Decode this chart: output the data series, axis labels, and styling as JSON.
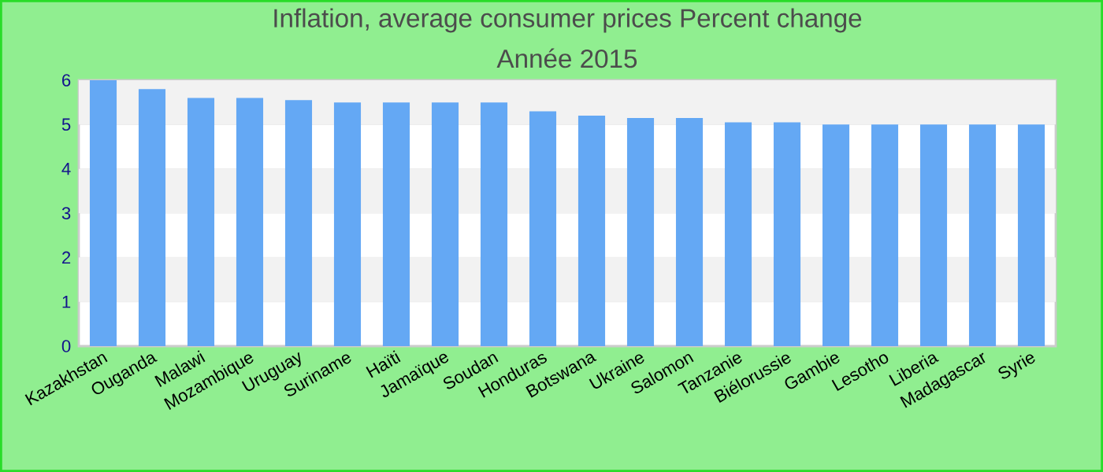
{
  "chart_data": {
    "type": "bar",
    "title": "Inflation, average consumer prices  Percent change",
    "subtitle": "Année 2015",
    "categories": [
      "Kazakhstan",
      "Ouganda",
      "Malawi",
      "Mozambique",
      "Uruguay",
      "Suriname",
      "Haïti",
      "Jamaïque",
      "Soudan",
      "Honduras",
      "Botswana",
      "Ukraine",
      "Salomon",
      "Tanzanie",
      "Biélorussie",
      "Gambie",
      "Lesotho",
      "Liberia",
      "Madagascar",
      "Syrie"
    ],
    "values": [
      6.0,
      5.8,
      5.6,
      5.6,
      5.55,
      5.5,
      5.5,
      5.5,
      5.5,
      5.3,
      5.2,
      5.15,
      5.15,
      5.05,
      5.05,
      5.0,
      5.0,
      5.0,
      5.0,
      5.0
    ],
    "color": "#64a8f4",
    "ylim": [
      0,
      6
    ],
    "yticks": [
      0,
      1,
      2,
      3,
      4,
      5,
      6
    ],
    "grid": "y"
  }
}
